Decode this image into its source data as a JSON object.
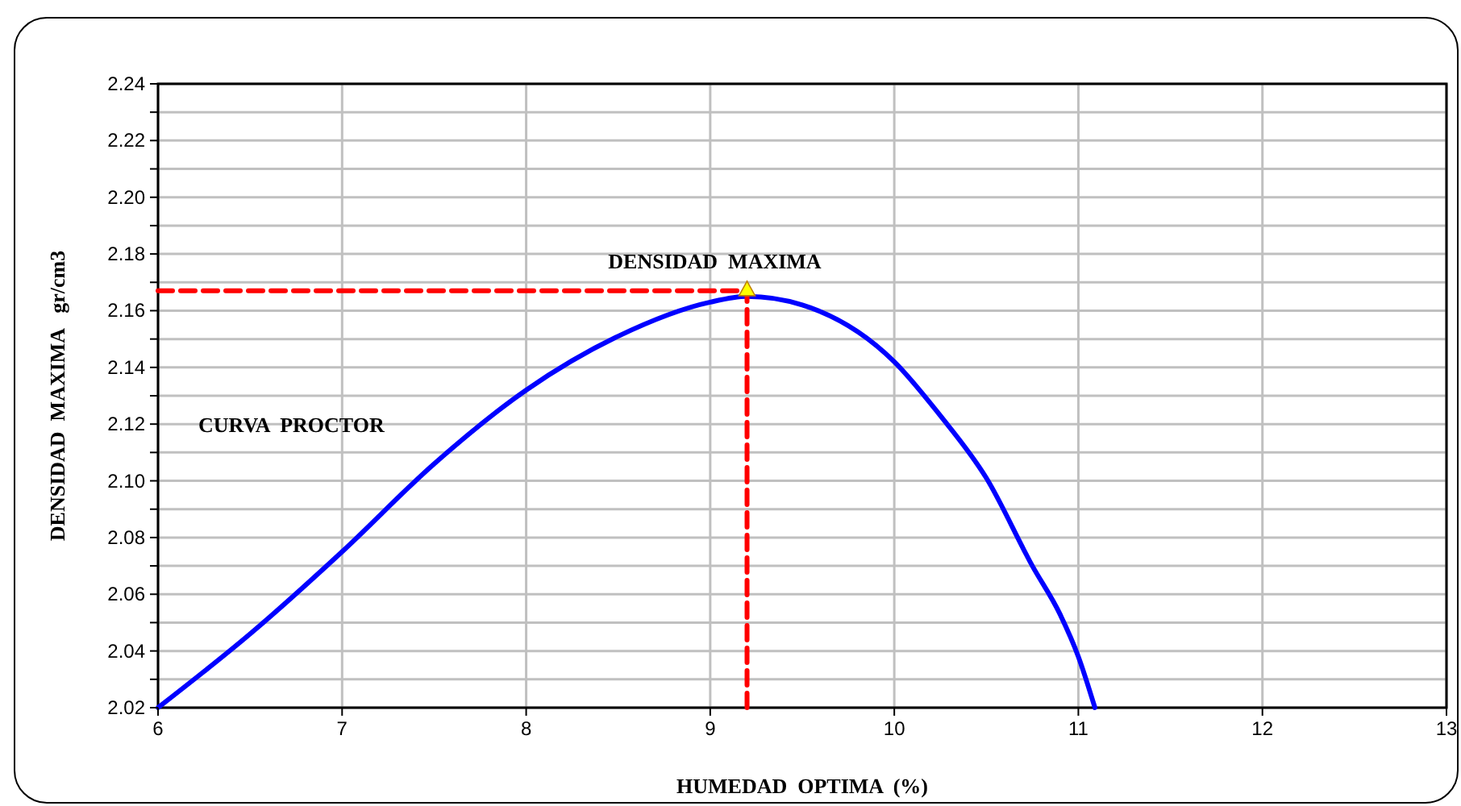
{
  "chart_data": {
    "type": "line",
    "xlabel": "HUMEDAD  OPTIMA  (%)",
    "ylabel": "DENSIDAD  MAXIMA   gr/cm3",
    "xlim": [
      6,
      13
    ],
    "xticks": [
      6,
      7,
      8,
      9,
      10,
      11,
      12,
      13
    ],
    "ylim": [
      2.02,
      2.24
    ],
    "yticks": [
      2.02,
      {
        "value": 2.03,
        "label": null
      },
      2.04,
      {
        "value": 2.05,
        "label": null
      },
      2.06,
      {
        "value": 2.07,
        "label": null
      },
      2.08,
      {
        "value": 2.09,
        "label": null
      },
      {
        "value": 2.1,
        "label": "2.10"
      },
      {
        "value": 2.11,
        "label": null
      },
      2.12,
      {
        "value": 2.13,
        "label": null
      },
      2.14,
      {
        "value": 2.15,
        "label": null
      },
      2.16,
      {
        "value": 2.17,
        "label": null
      },
      2.18,
      {
        "value": 2.19,
        "label": null
      },
      {
        "value": 2.2,
        "label": "2.20"
      },
      {
        "value": 2.21,
        "label": null
      },
      2.22,
      {
        "value": 2.23,
        "label": null
      },
      2.24
    ],
    "grid": true,
    "legend": false,
    "series": [
      {
        "name": "CURVA PROCTOR",
        "color": "#0000ff",
        "type": "line",
        "line_style": "solid",
        "marker": "none",
        "x": [
          6,
          6.5,
          7,
          7.5,
          8,
          8.5,
          9,
          9.2,
          9.5,
          10,
          10.25,
          10.5,
          10.75,
          10.9,
          11,
          11.09
        ],
        "values": [
          2.02,
          2.046,
          2.075,
          2.106,
          2.132,
          2.151,
          2.163,
          2.165,
          2.162,
          2.142,
          2.123,
          2.101,
          2.07,
          2.053,
          2.038,
          2.02
        ]
      },
      {
        "color": "#ff0000",
        "type": "line",
        "line_style": "dashed",
        "marker": "none",
        "x": [
          6,
          9.2
        ],
        "values": [
          2.167,
          2.167
        ]
      },
      {
        "color": "#ff0000",
        "type": "line",
        "line_style": "dashed",
        "marker": "none",
        "x": [
          9.2,
          9.2
        ],
        "values": [
          2.02,
          2.167
        ]
      },
      {
        "color": "#ffff00",
        "type": "scatter",
        "marker": "triangle",
        "x": [
          9.2
        ],
        "values": [
          2.167
        ]
      }
    ],
    "annotations": [
      {
        "text": "DENSIDAD  MAXIMA",
        "x": 9.2,
        "y": 2.167
      }
    ]
  }
}
